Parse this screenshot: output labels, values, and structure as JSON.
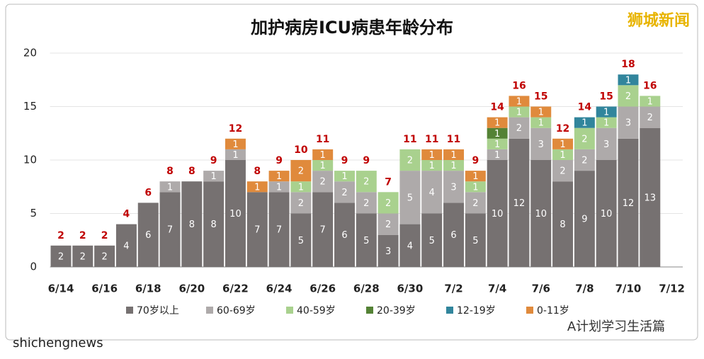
{
  "chart_data": {
    "type": "stacked_bar",
    "title": "加护病房ICU病患年龄分布",
    "categories": [
      "6/14",
      null,
      "6/16",
      null,
      "6/18",
      null,
      "6/20",
      null,
      "6/22",
      null,
      "6/24",
      null,
      "6/26",
      null,
      "6/28",
      null,
      "6/30",
      null,
      "7/2",
      null,
      "7/4",
      null,
      "7/6",
      null,
      "7/8",
      null,
      "7/10",
      null,
      "7/12"
    ],
    "series": [
      {
        "name": "70岁以上",
        "color": "#767171",
        "values": [
          2,
          2,
          2,
          4,
          6,
          7,
          8,
          8,
          10,
          7,
          7,
          5,
          7,
          6,
          5,
          3,
          4,
          5,
          6,
          5,
          10,
          12,
          10,
          8,
          9,
          10,
          12,
          13,
          null
        ]
      },
      {
        "name": "60-69岁",
        "color": "#aeaaaa",
        "values": [
          0,
          0,
          0,
          0,
          0,
          1,
          0,
          1,
          1,
          0,
          1,
          2,
          2,
          2,
          2,
          2,
          5,
          4,
          3,
          2,
          1,
          2,
          3,
          2,
          2,
          3,
          3,
          2,
          null
        ]
      },
      {
        "name": "40-59岁",
        "color": "#a9d18e",
        "values": [
          0,
          0,
          0,
          0,
          0,
          0,
          0,
          0,
          0,
          0,
          0,
          1,
          1,
          1,
          2,
          2,
          2,
          1,
          1,
          1,
          1,
          1,
          1,
          1,
          2,
          1,
          2,
          1,
          null
        ]
      },
      {
        "name": "20-39岁",
        "color": "#548235",
        "values": [
          0,
          0,
          0,
          0,
          0,
          0,
          0,
          0,
          0,
          0,
          0,
          0,
          0,
          0,
          0,
          0,
          0,
          0,
          0,
          0,
          1,
          0,
          0,
          0,
          0,
          0,
          0,
          0,
          null
        ]
      },
      {
        "name": "12-19岁",
        "color": "#31859c",
        "values": [
          0,
          0,
          0,
          0,
          0,
          0,
          0,
          0,
          0,
          0,
          0,
          0,
          0,
          0,
          0,
          0,
          0,
          0,
          0,
          0,
          0,
          0,
          0,
          0,
          1,
          1,
          1,
          0,
          null
        ]
      },
      {
        "name": "0-11岁",
        "color": "#e08a3c",
        "values": [
          0,
          0,
          0,
          0,
          0,
          0,
          0,
          0,
          1,
          1,
          1,
          2,
          1,
          0,
          0,
          0,
          0,
          1,
          1,
          1,
          1,
          1,
          1,
          1,
          0,
          0,
          0,
          0,
          null
        ]
      }
    ],
    "totals": [
      2,
      2,
      2,
      4,
      6,
      8,
      8,
      9,
      12,
      8,
      9,
      10,
      11,
      9,
      9,
      7,
      11,
      11,
      11,
      9,
      14,
      16,
      15,
      12,
      14,
      15,
      18,
      16,
      null
    ],
    "totals_color": "#c00000",
    "ylim": [
      0,
      20
    ],
    "yticks": [
      0,
      5,
      10,
      15,
      20
    ],
    "grid": true,
    "legend": "bottom"
  },
  "watermarks": {
    "top_right": "狮城新闻",
    "bottom_right": "A计划学习生活篇",
    "bottom_left": "shichengnews"
  }
}
